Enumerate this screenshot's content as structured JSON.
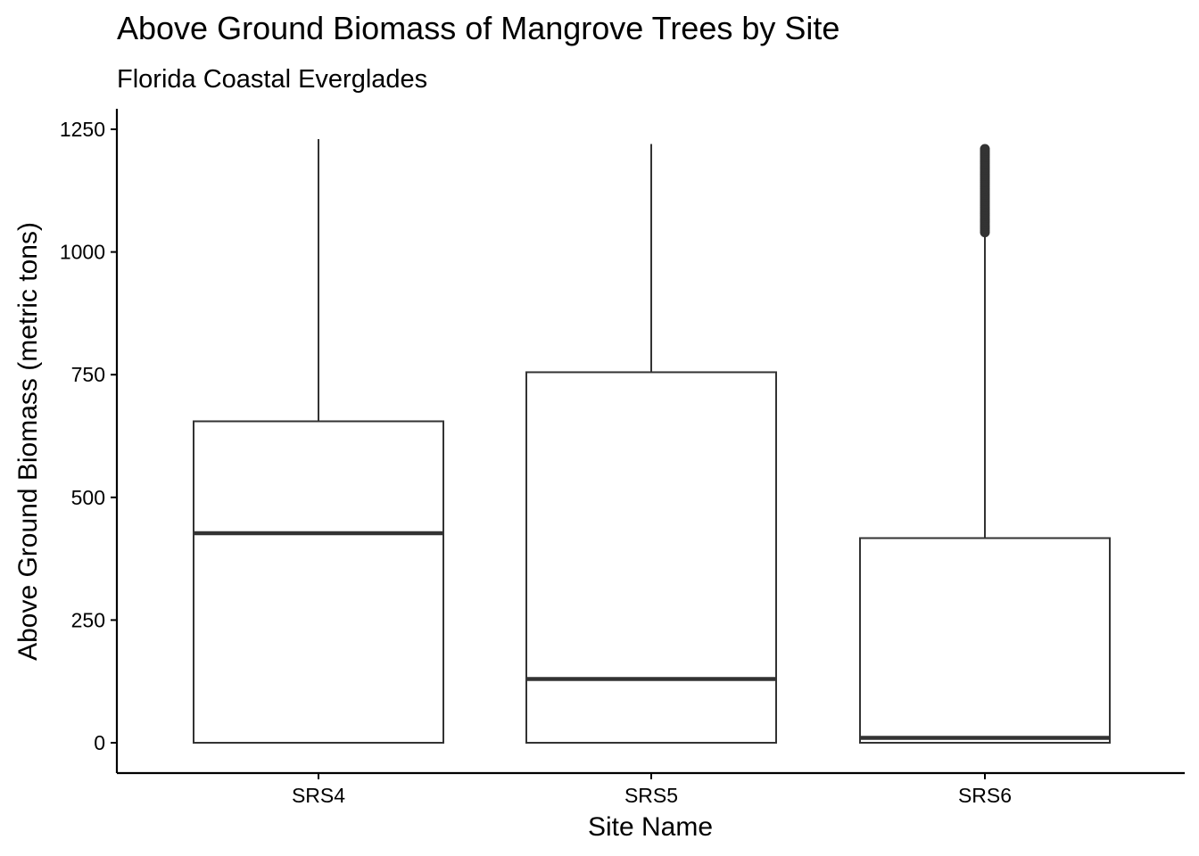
{
  "chart_data": {
    "type": "boxplot",
    "title": "Above Ground Biomass of Mangrove Trees by Site",
    "subtitle": "Florida Coastal Everglades",
    "xlabel": "Site Name",
    "ylabel": "Above Ground Biomass (metric tons)",
    "ylim": [
      -62,
      1292
    ],
    "yticks": [
      0,
      250,
      500,
      750,
      1000,
      1250
    ],
    "grid": false,
    "legend": "none",
    "categories": [
      "SRS4",
      "SRS5",
      "SRS6"
    ],
    "boxes": [
      {
        "category": "SRS4",
        "whisker_low": 0,
        "q1": 0,
        "median": 427,
        "q3": 655,
        "whisker_high": 1230,
        "outliers_range": null
      },
      {
        "category": "SRS5",
        "whisker_low": 0,
        "q1": 0,
        "median": 130,
        "q3": 755,
        "whisker_high": 1220,
        "outliers_range": null
      },
      {
        "category": "SRS6",
        "whisker_low": 0,
        "q1": 0,
        "median": 10,
        "q3": 417,
        "whisker_high": 1040,
        "outliers_range": [
          1040,
          1210
        ]
      }
    ],
    "colors": {
      "box_stroke": "#333333",
      "box_fill": "#ffffff",
      "axis": "#000000"
    }
  }
}
